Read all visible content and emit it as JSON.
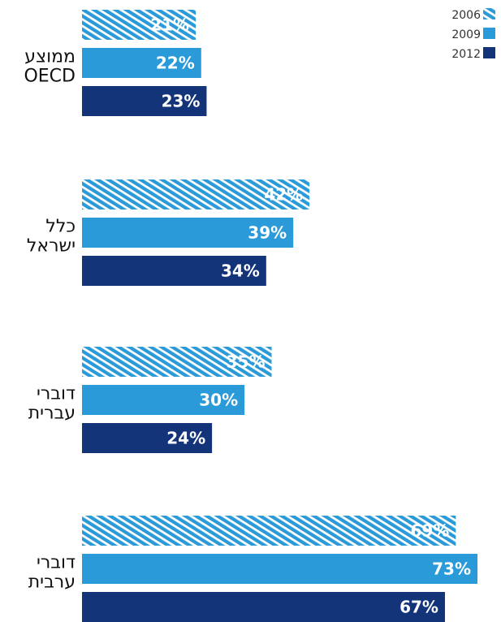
{
  "chart_data": {
    "type": "bar",
    "orientation": "horizontal",
    "categories": [
      [
        "ממוצע",
        "OECD"
      ],
      [
        "כלל",
        "ישראל"
      ],
      [
        "דוברי",
        "עברית"
      ],
      [
        "דוברי",
        "ערבית"
      ]
    ],
    "series": [
      {
        "name": "2006",
        "values": [
          21,
          42,
          35,
          69
        ],
        "color": "#2a9ad8",
        "pattern": "striped"
      },
      {
        "name": "2009",
        "values": [
          22,
          39,
          30,
          73
        ],
        "color": "#2a9ad8",
        "pattern": "solid"
      },
      {
        "name": "2012",
        "values": [
          23,
          34,
          24,
          67
        ],
        "color": "#14347a",
        "pattern": "solid"
      }
    ],
    "value_suffix": "%",
    "xlim": [
      0,
      73
    ],
    "legend_position": "top-right",
    "grid": false
  }
}
